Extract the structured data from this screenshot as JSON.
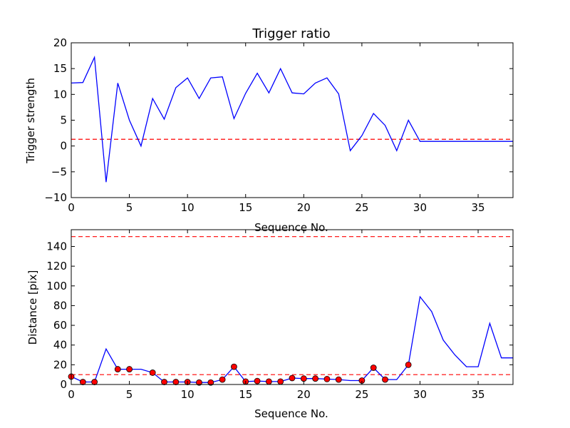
{
  "chart_data": [
    {
      "type": "line",
      "title": "Trigger ratio",
      "xlabel": "Sequence No.",
      "ylabel": "Trigger strength",
      "xlim": [
        0,
        38
      ],
      "ylim": [
        -10,
        20
      ],
      "xticks": [
        0,
        5,
        10,
        15,
        20,
        25,
        30,
        35
      ],
      "xtick_labels": [
        "0",
        "5",
        "10",
        "15",
        "20",
        "25",
        "30",
        "35"
      ],
      "yticks": [
        -10,
        -5,
        0,
        5,
        10,
        15,
        20
      ],
      "ytick_labels": [
        "−10",
        "−5",
        "0",
        "5",
        "10",
        "15",
        "20"
      ],
      "grid": false,
      "series": [
        {
          "color": "#0000ff",
          "style": "solid",
          "x": [
            0,
            1,
            2,
            3,
            4,
            5,
            6,
            7,
            8,
            9,
            10,
            11,
            12,
            13,
            14,
            15,
            16,
            17,
            18,
            19,
            20,
            21,
            22,
            23,
            24,
            25,
            26,
            27,
            28,
            29,
            30,
            31,
            32,
            33,
            34,
            35,
            36,
            37,
            38
          ],
          "y": [
            12.2,
            12.3,
            17.2,
            -7,
            12.2,
            5,
            0,
            9.2,
            5.2,
            11.3,
            13.2,
            9.2,
            13.2,
            13.4,
            5.3,
            10.2,
            14.1,
            10.3,
            15,
            10.3,
            10.1,
            12.2,
            13.2,
            10.1,
            -0.9,
            2,
            6.3,
            4,
            -0.9,
            5,
            0.9,
            0.9,
            0.9,
            0.9,
            0.9,
            0.9,
            0.9,
            0.9,
            0.9
          ]
        }
      ],
      "reference_lines": [
        {
          "y": 1.3,
          "color": "#ff0000",
          "style": "dashed"
        }
      ]
    },
    {
      "type": "line",
      "title": "",
      "xlabel": "Sequence No.",
      "ylabel": "Distance [pix]",
      "xlim": [
        0,
        38
      ],
      "ylim": [
        0,
        157
      ],
      "xticks": [
        0,
        5,
        10,
        15,
        20,
        25,
        30,
        35
      ],
      "xtick_labels": [
        "0",
        "5",
        "10",
        "15",
        "20",
        "25",
        "30",
        "35"
      ],
      "yticks": [
        0,
        20,
        40,
        60,
        80,
        100,
        120,
        140
      ],
      "ytick_labels": [
        "0",
        "20",
        "40",
        "60",
        "80",
        "100",
        "120",
        "140"
      ],
      "grid": false,
      "series": [
        {
          "color": "#0000ff",
          "style": "solid",
          "x": [
            0,
            1,
            2,
            3,
            4,
            5,
            6,
            7,
            8,
            9,
            10,
            11,
            12,
            13,
            14,
            15,
            16,
            17,
            18,
            19,
            20,
            21,
            22,
            23,
            24,
            25,
            26,
            27,
            28,
            29,
            30,
            31,
            32,
            33,
            34,
            35,
            36,
            37,
            38
          ],
          "y": [
            8,
            2.5,
            2.5,
            36,
            15.5,
            15.5,
            15.5,
            12,
            2.5,
            2.5,
            2.5,
            2,
            2,
            5,
            18,
            3,
            3.5,
            3,
            3,
            6.5,
            6,
            6,
            5.5,
            5,
            4,
            4,
            17,
            5,
            5,
            20,
            89,
            74,
            45,
            30,
            18,
            18,
            62,
            27,
            27
          ]
        },
        {
          "type": "scatter",
          "color": "#ff0000",
          "x": [
            0,
            1,
            2,
            4,
            5,
            7,
            8,
            9,
            10,
            11,
            12,
            13,
            14,
            15,
            16,
            17,
            18,
            19,
            20,
            21,
            22,
            23,
            25,
            26,
            27,
            29
          ],
          "y": [
            8,
            2.5,
            2.5,
            15.5,
            15.5,
            12,
            2.5,
            2.5,
            2.5,
            2,
            2,
            5,
            18,
            3,
            3.5,
            3,
            3,
            6.5,
            6,
            6,
            5.5,
            5,
            4,
            17,
            5,
            20
          ]
        }
      ],
      "reference_lines": [
        {
          "y": 150,
          "color": "#ff0000",
          "style": "dashed"
        },
        {
          "y": 10,
          "color": "#ff0000",
          "style": "dashed"
        }
      ]
    }
  ]
}
